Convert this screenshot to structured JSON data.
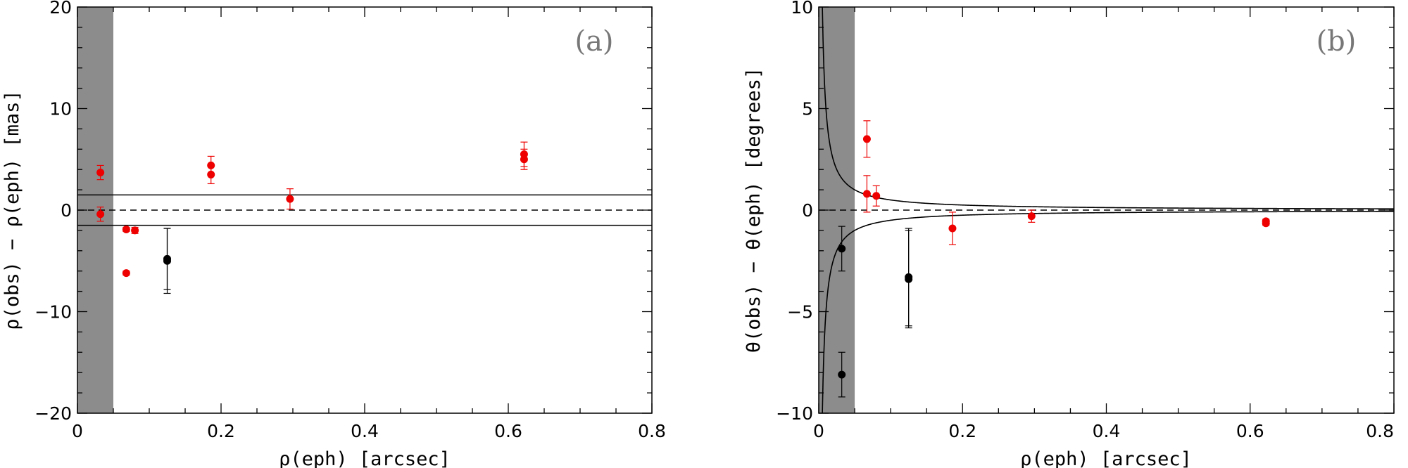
{
  "chart_data": [
    {
      "type": "scatter",
      "panel_label": "(a)",
      "xlabel": "ρ(eph)  [arcsec]",
      "ylabel": "ρ(obs) − ρ(eph)  [mas]",
      "xlim": [
        0,
        0.8
      ],
      "ylim": [
        -20,
        20
      ],
      "x_ticks": [
        0,
        0.2,
        0.4,
        0.6,
        0.8
      ],
      "x_tick_labels": [
        "0",
        "0.2",
        "0.4",
        "0.6",
        "0.8"
      ],
      "y_ticks": [
        -20,
        -10,
        0,
        10,
        20
      ],
      "y_tick_labels": [
        "−20",
        "−10",
        "0",
        "10",
        "20"
      ],
      "shaded_region": {
        "x0": 0,
        "x1": 0.05,
        "color": "#8c8c8c"
      },
      "reference_lines": [
        {
          "y": 0,
          "style": "dashed"
        },
        {
          "y": 1.5,
          "style": "solid"
        },
        {
          "y": -1.5,
          "style": "solid"
        }
      ],
      "series": [
        {
          "name": "red",
          "color": "#ee0000",
          "points": [
            {
              "x": 0.032,
              "y": 3.7,
              "err": 0.7
            },
            {
              "x": 0.032,
              "y": -0.4,
              "err": 0.7
            },
            {
              "x": 0.068,
              "y": -1.9,
              "err": 0.2
            },
            {
              "x": 0.068,
              "y": -6.2,
              "err": 0.2
            },
            {
              "x": 0.08,
              "y": -2.0,
              "err": 0.3
            },
            {
              "x": 0.186,
              "y": 4.4,
              "err": 0.9
            },
            {
              "x": 0.186,
              "y": 3.5,
              "err": 0.9
            },
            {
              "x": 0.296,
              "y": 1.1,
              "err": 1.0
            },
            {
              "x": 0.622,
              "y": 5.5,
              "err": 1.2
            },
            {
              "x": 0.622,
              "y": 5.0,
              "err": 1.0
            }
          ]
        },
        {
          "name": "black",
          "color": "#000000",
          "points": [
            {
              "x": 0.125,
              "y": -4.8,
              "err": 3.0
            },
            {
              "x": 0.125,
              "y": -5.0,
              "err": 3.2
            }
          ]
        }
      ]
    },
    {
      "type": "scatter",
      "panel_label": "(b)",
      "xlabel": "ρ(eph)  [arcsec]",
      "ylabel": "θ(obs) − θ(eph)  [degrees]",
      "xlim": [
        0,
        0.8
      ],
      "ylim": [
        -10,
        10
      ],
      "x_ticks": [
        0,
        0.2,
        0.4,
        0.6,
        0.8
      ],
      "x_tick_labels": [
        "0",
        "0.2",
        "0.4",
        "0.6",
        "0.8"
      ],
      "y_ticks": [
        -10,
        -5,
        0,
        5,
        10
      ],
      "y_tick_labels": [
        "−10",
        "−5",
        "0",
        "5",
        "10"
      ],
      "shaded_region": {
        "x0": 0,
        "x1": 0.05,
        "color": "#8c8c8c"
      },
      "reference_lines": [
        {
          "y": 0,
          "style": "dashed"
        }
      ],
      "envelope": {
        "form": "y = ± k / x",
        "k": 0.05
      },
      "series": [
        {
          "name": "red",
          "color": "#ee0000",
          "points": [
            {
              "x": 0.067,
              "y": 3.5,
              "err": 0.9
            },
            {
              "x": 0.067,
              "y": 0.8,
              "err": 0.9
            },
            {
              "x": 0.08,
              "y": 0.7,
              "err": 0.5
            },
            {
              "x": 0.186,
              "y": -0.9,
              "err": 0.8
            },
            {
              "x": 0.296,
              "y": -0.3,
              "err": 0.3
            },
            {
              "x": 0.622,
              "y": -0.55,
              "err": 0.1
            },
            {
              "x": 0.622,
              "y": -0.65,
              "err": 0.1
            }
          ]
        },
        {
          "name": "black",
          "color": "#000000",
          "points": [
            {
              "x": 0.032,
              "y": -1.9,
              "err": 1.1
            },
            {
              "x": 0.032,
              "y": -8.1,
              "err": 1.1
            },
            {
              "x": 0.125,
              "y": -3.3,
              "err": 2.4
            },
            {
              "x": 0.125,
              "y": -3.4,
              "err": 2.4
            }
          ]
        }
      ]
    }
  ]
}
